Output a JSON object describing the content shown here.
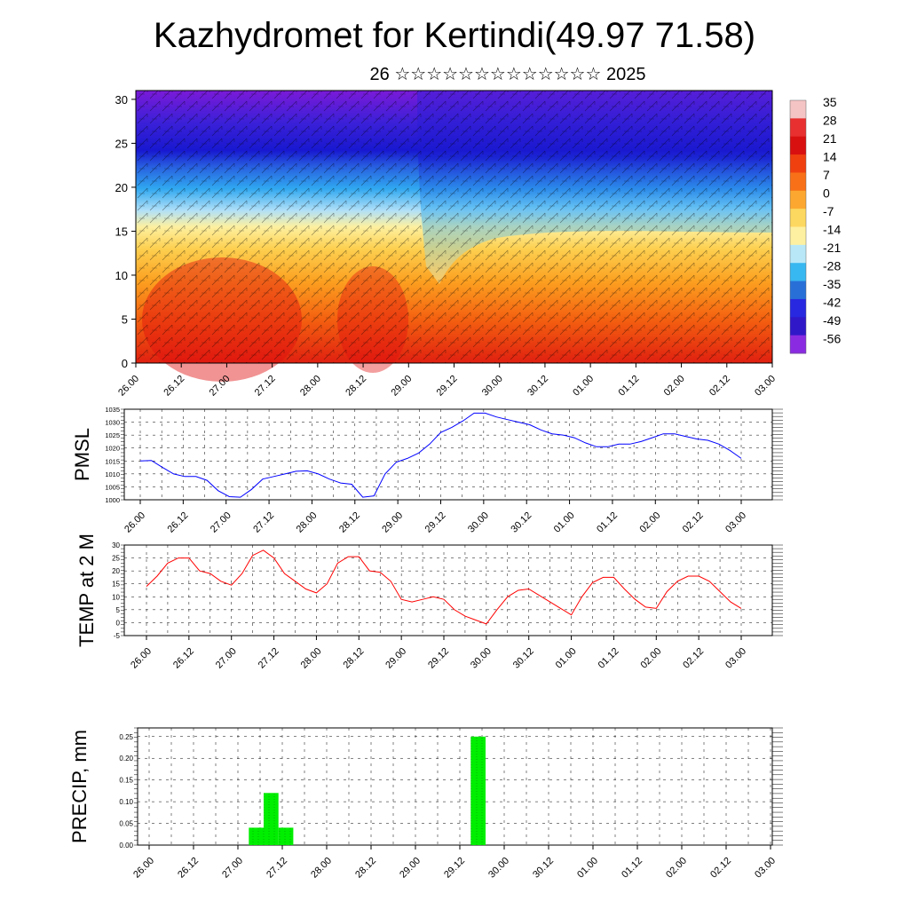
{
  "header": {
    "title": "Kazhydromet for Kertindi(49.97 71.58)",
    "subtitle": "26 ☆☆☆☆☆☆☆☆☆☆☆☆☆ 2025"
  },
  "chart_data": [
    {
      "type": "heatmap",
      "panel": "cross-section",
      "x_tick_labels": [
        "26.00",
        "26.12",
        "27.00",
        "27.12",
        "28.00",
        "28.12",
        "29.00",
        "29.12",
        "30.00",
        "30.12",
        "01.00",
        "01.12",
        "02.00",
        "02.12",
        "03.00"
      ],
      "y_ticks": [
        0,
        5,
        10,
        15,
        20,
        25,
        30
      ],
      "ylim": [
        0,
        31
      ],
      "colorbar_labels": [
        "35",
        "28",
        "21",
        "14",
        "7",
        "0",
        "-7",
        "-14",
        "-21",
        "-28",
        "-35",
        "-42",
        "-49",
        "-56"
      ],
      "colorbar_colors": [
        "#f4c4c4",
        "#e83030",
        "#d81010",
        "#f04010",
        "#f87018",
        "#fca830",
        "#fdd860",
        "#fdf0a0",
        "#b8e8f8",
        "#38b8f0",
        "#2870d8",
        "#2828e0",
        "#3018c8",
        "#8a2be2"
      ],
      "wind_overlay": true
    },
    {
      "type": "line",
      "ylabel": "PMSL",
      "ylim": [
        1000,
        1035
      ],
      "y_ticks": [
        1000,
        1005,
        1010,
        1015,
        1020,
        1025,
        1030,
        1035
      ],
      "x_tick_labels": [
        "26.00",
        "26.12",
        "27.00",
        "27.12",
        "28.00",
        "28.12",
        "29.00",
        "29.12",
        "30.00",
        "30.12",
        "01.00",
        "01.12",
        "02.00",
        "02.12",
        "03.00"
      ],
      "color": "#0000ff",
      "values": [
        1015,
        1015.2,
        1012.5,
        1010,
        1009,
        1009,
        1007.5,
        1003.5,
        1001.2,
        1001,
        1004,
        1008,
        1009,
        1010,
        1011,
        1011.2,
        1010,
        1008,
        1006.5,
        1006,
        1001,
        1001.5,
        1010,
        1014.5,
        1016,
        1018,
        1021.5,
        1026,
        1028,
        1030.5,
        1033.5,
        1033.5,
        1032,
        1031,
        1030,
        1029,
        1027,
        1025.5,
        1025,
        1024,
        1022,
        1020.5,
        1020.5,
        1021.5,
        1021.5,
        1022.5,
        1024,
        1025.5,
        1025.5,
        1024.5,
        1023.5,
        1023,
        1021.5,
        1019,
        1016
      ]
    },
    {
      "type": "line",
      "ylabel": "TEMP at 2 M",
      "ylim": [
        -5,
        30
      ],
      "y_ticks": [
        -5,
        0,
        5,
        10,
        15,
        20,
        25,
        30
      ],
      "x_tick_labels": [
        "26.00",
        "26.12",
        "27.00",
        "27.12",
        "28.00",
        "28.12",
        "29.00",
        "29.12",
        "30.00",
        "30.12",
        "01.00",
        "01.12",
        "02.00",
        "02.12",
        "03.00"
      ],
      "color": "#ff0000",
      "values": [
        14,
        18,
        23,
        25,
        25,
        20,
        19,
        16,
        14.5,
        19,
        26,
        28,
        25,
        19,
        16,
        13,
        11.5,
        15,
        23,
        25.5,
        25.5,
        20,
        19.5,
        16,
        9,
        8,
        9,
        10,
        9,
        5,
        2.5,
        1,
        -0.5,
        5,
        10,
        12.5,
        13,
        10.5,
        8,
        5.5,
        3,
        10,
        15.5,
        17.5,
        17.5,
        13,
        9,
        6,
        5.5,
        12,
        16,
        18,
        18,
        16,
        12,
        8,
        5.5
      ]
    },
    {
      "type": "bar",
      "ylabel": "PRECIP, mm",
      "ylim": [
        0,
        0.27
      ],
      "y_ticks": [
        0.0,
        0.05,
        0.1,
        0.15,
        0.2,
        0.25
      ],
      "y_tick_labels": [
        "0.00",
        "0.05",
        "0.10",
        "0.15",
        "0.20",
        "0.25"
      ],
      "x_tick_labels": [
        "26.00",
        "26.12",
        "27.00",
        "27.12",
        "28.00",
        "28.12",
        "29.00",
        "29.12",
        "30.00",
        "30.12",
        "01.00",
        "01.12",
        "02.00",
        "02.12",
        "03.00"
      ],
      "color": "#00ee00",
      "bars": [
        {
          "x": 7,
          "value": 0.04
        },
        {
          "x": 8,
          "value": 0.12
        },
        {
          "x": 9,
          "value": 0.04
        },
        {
          "x": 22,
          "value": 0.25
        }
      ]
    }
  ]
}
